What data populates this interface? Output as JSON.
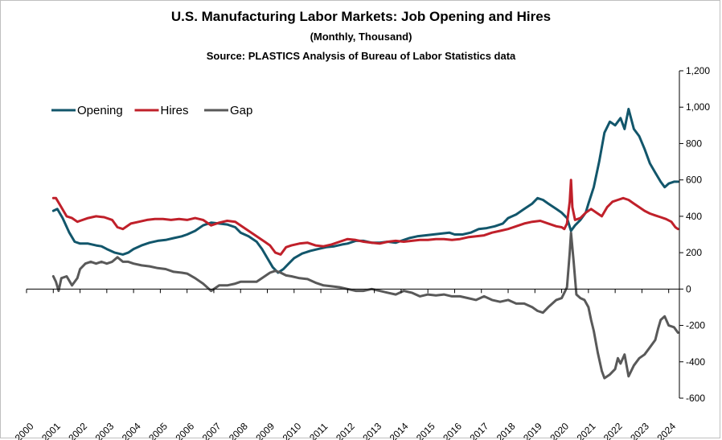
{
  "title": "U.S. Manufacturing Labor Markets: Job Opening and Hires",
  "subtitle": "(Monthly, Thousand)",
  "source": "Source: PLASTICS Analysis of Bureau of Labor Statistics data",
  "chart_data": {
    "type": "line",
    "ylim": [
      -600,
      1200
    ],
    "y_ticks": [
      1200,
      1000,
      800,
      600,
      400,
      200,
      0,
      -200,
      -400,
      -600
    ],
    "y_tick_labels": [
      "1,200",
      "1,000",
      "800",
      "600",
      "400",
      "200",
      "0",
      "-200",
      "-400",
      "-600"
    ],
    "x_range": [
      2000,
      2024.4
    ],
    "x_ticks": [
      "2000",
      "2001",
      "2002",
      "2003",
      "2004",
      "2005",
      "2006",
      "2007",
      "2008",
      "2009",
      "2010",
      "2011",
      "2012",
      "2013",
      "2014",
      "2015",
      "2016",
      "2017",
      "2018",
      "2019",
      "2020",
      "2021",
      "2022",
      "2023",
      "2024"
    ],
    "grid": false,
    "legend_position": "top-left",
    "series": [
      {
        "name": "Opening",
        "color": "#12566b",
        "points": [
          [
            2001.0,
            430
          ],
          [
            2001.15,
            440
          ],
          [
            2001.35,
            390
          ],
          [
            2001.6,
            310
          ],
          [
            2001.8,
            260
          ],
          [
            2002.0,
            250
          ],
          [
            2002.3,
            250
          ],
          [
            2002.6,
            240
          ],
          [
            2002.8,
            235
          ],
          [
            2003.0,
            220
          ],
          [
            2003.3,
            200
          ],
          [
            2003.6,
            190
          ],
          [
            2003.8,
            200
          ],
          [
            2004.0,
            220
          ],
          [
            2004.3,
            240
          ],
          [
            2004.6,
            255
          ],
          [
            2004.9,
            265
          ],
          [
            2005.2,
            270
          ],
          [
            2005.5,
            280
          ],
          [
            2005.8,
            290
          ],
          [
            2006.0,
            300
          ],
          [
            2006.3,
            320
          ],
          [
            2006.6,
            350
          ],
          [
            2006.9,
            365
          ],
          [
            2007.2,
            360
          ],
          [
            2007.5,
            355
          ],
          [
            2007.8,
            340
          ],
          [
            2008.0,
            310
          ],
          [
            2008.3,
            290
          ],
          [
            2008.6,
            260
          ],
          [
            2008.8,
            220
          ],
          [
            2009.0,
            170
          ],
          [
            2009.2,
            120
          ],
          [
            2009.4,
            90
          ],
          [
            2009.6,
            110
          ],
          [
            2009.8,
            140
          ],
          [
            2010.0,
            170
          ],
          [
            2010.3,
            195
          ],
          [
            2010.6,
            210
          ],
          [
            2010.9,
            220
          ],
          [
            2011.2,
            230
          ],
          [
            2011.5,
            235
          ],
          [
            2011.8,
            245
          ],
          [
            2012.0,
            250
          ],
          [
            2012.3,
            265
          ],
          [
            2012.6,
            265
          ],
          [
            2012.9,
            255
          ],
          [
            2013.2,
            255
          ],
          [
            2013.5,
            260
          ],
          [
            2013.8,
            255
          ],
          [
            2014.0,
            265
          ],
          [
            2014.3,
            280
          ],
          [
            2014.6,
            290
          ],
          [
            2014.9,
            295
          ],
          [
            2015.2,
            300
          ],
          [
            2015.5,
            305
          ],
          [
            2015.8,
            310
          ],
          [
            2016.0,
            300
          ],
          [
            2016.3,
            300
          ],
          [
            2016.6,
            310
          ],
          [
            2016.9,
            330
          ],
          [
            2017.2,
            335
          ],
          [
            2017.5,
            345
          ],
          [
            2017.8,
            360
          ],
          [
            2018.0,
            390
          ],
          [
            2018.3,
            410
          ],
          [
            2018.6,
            440
          ],
          [
            2018.9,
            470
          ],
          [
            2019.1,
            500
          ],
          [
            2019.3,
            490
          ],
          [
            2019.5,
            470
          ],
          [
            2019.8,
            440
          ],
          [
            2020.0,
            420
          ],
          [
            2020.2,
            390
          ],
          [
            2020.35,
            320
          ],
          [
            2020.5,
            350
          ],
          [
            2020.7,
            380
          ],
          [
            2020.9,
            420
          ],
          [
            2021.0,
            470
          ],
          [
            2021.2,
            560
          ],
          [
            2021.4,
            700
          ],
          [
            2021.6,
            860
          ],
          [
            2021.8,
            920
          ],
          [
            2022.0,
            900
          ],
          [
            2022.2,
            940
          ],
          [
            2022.35,
            880
          ],
          [
            2022.5,
            990
          ],
          [
            2022.7,
            880
          ],
          [
            2022.9,
            840
          ],
          [
            2023.1,
            770
          ],
          [
            2023.3,
            690
          ],
          [
            2023.5,
            640
          ],
          [
            2023.7,
            590
          ],
          [
            2023.85,
            560
          ],
          [
            2024.0,
            580
          ],
          [
            2024.2,
            590
          ],
          [
            2024.35,
            590
          ]
        ]
      },
      {
        "name": "Hires",
        "color": "#c0202a",
        "points": [
          [
            2001.0,
            500
          ],
          [
            2001.1,
            500
          ],
          [
            2001.3,
            450
          ],
          [
            2001.5,
            400
          ],
          [
            2001.7,
            390
          ],
          [
            2001.9,
            370
          ],
          [
            2002.0,
            375
          ],
          [
            2002.3,
            390
          ],
          [
            2002.6,
            400
          ],
          [
            2002.9,
            395
          ],
          [
            2003.2,
            380
          ],
          [
            2003.4,
            340
          ],
          [
            2003.6,
            330
          ],
          [
            2003.9,
            360
          ],
          [
            2004.2,
            370
          ],
          [
            2004.5,
            380
          ],
          [
            2004.8,
            385
          ],
          [
            2005.1,
            385
          ],
          [
            2005.4,
            380
          ],
          [
            2005.7,
            385
          ],
          [
            2006.0,
            380
          ],
          [
            2006.3,
            390
          ],
          [
            2006.6,
            380
          ],
          [
            2006.9,
            350
          ],
          [
            2007.2,
            365
          ],
          [
            2007.5,
            375
          ],
          [
            2007.8,
            370
          ],
          [
            2008.0,
            350
          ],
          [
            2008.3,
            320
          ],
          [
            2008.6,
            290
          ],
          [
            2008.9,
            260
          ],
          [
            2009.1,
            240
          ],
          [
            2009.3,
            200
          ],
          [
            2009.5,
            190
          ],
          [
            2009.7,
            230
          ],
          [
            2009.9,
            240
          ],
          [
            2010.2,
            250
          ],
          [
            2010.5,
            255
          ],
          [
            2010.8,
            240
          ],
          [
            2011.1,
            235
          ],
          [
            2011.4,
            245
          ],
          [
            2011.7,
            260
          ],
          [
            2012.0,
            275
          ],
          [
            2012.3,
            270
          ],
          [
            2012.6,
            260
          ],
          [
            2012.9,
            255
          ],
          [
            2013.2,
            250
          ],
          [
            2013.5,
            260
          ],
          [
            2013.8,
            265
          ],
          [
            2014.1,
            260
          ],
          [
            2014.4,
            265
          ],
          [
            2014.7,
            270
          ],
          [
            2015.0,
            270
          ],
          [
            2015.3,
            275
          ],
          [
            2015.6,
            275
          ],
          [
            2015.9,
            270
          ],
          [
            2016.2,
            275
          ],
          [
            2016.5,
            285
          ],
          [
            2016.8,
            290
          ],
          [
            2017.1,
            295
          ],
          [
            2017.4,
            310
          ],
          [
            2017.7,
            320
          ],
          [
            2018.0,
            330
          ],
          [
            2018.3,
            345
          ],
          [
            2018.6,
            360
          ],
          [
            2018.9,
            370
          ],
          [
            2019.2,
            375
          ],
          [
            2019.5,
            360
          ],
          [
            2019.8,
            345
          ],
          [
            2020.0,
            340
          ],
          [
            2020.1,
            330
          ],
          [
            2020.2,
            360
          ],
          [
            2020.3,
            480
          ],
          [
            2020.35,
            600
          ],
          [
            2020.4,
            450
          ],
          [
            2020.5,
            380
          ],
          [
            2020.7,
            390
          ],
          [
            2020.9,
            420
          ],
          [
            2021.1,
            440
          ],
          [
            2021.3,
            420
          ],
          [
            2021.5,
            400
          ],
          [
            2021.7,
            450
          ],
          [
            2021.9,
            480
          ],
          [
            2022.1,
            490
          ],
          [
            2022.3,
            500
          ],
          [
            2022.5,
            490
          ],
          [
            2022.7,
            470
          ],
          [
            2022.9,
            450
          ],
          [
            2023.1,
            430
          ],
          [
            2023.3,
            415
          ],
          [
            2023.5,
            405
          ],
          [
            2023.7,
            395
          ],
          [
            2023.9,
            385
          ],
          [
            2024.1,
            370
          ],
          [
            2024.25,
            340
          ],
          [
            2024.35,
            330
          ]
        ]
      },
      {
        "name": "Gap",
        "color": "#595959",
        "points": [
          [
            2001.0,
            70
          ],
          [
            2001.1,
            40
          ],
          [
            2001.2,
            -10
          ],
          [
            2001.3,
            60
          ],
          [
            2001.5,
            70
          ],
          [
            2001.7,
            20
          ],
          [
            2001.9,
            60
          ],
          [
            2002.0,
            110
          ],
          [
            2002.2,
            140
          ],
          [
            2002.4,
            150
          ],
          [
            2002.6,
            140
          ],
          [
            2002.8,
            150
          ],
          [
            2003.0,
            140
          ],
          [
            2003.2,
            150
          ],
          [
            2003.4,
            175
          ],
          [
            2003.6,
            150
          ],
          [
            2003.8,
            150
          ],
          [
            2004.0,
            140
          ],
          [
            2004.3,
            130
          ],
          [
            2004.6,
            125
          ],
          [
            2004.9,
            115
          ],
          [
            2005.2,
            110
          ],
          [
            2005.5,
            95
          ],
          [
            2005.8,
            90
          ],
          [
            2006.0,
            85
          ],
          [
            2006.3,
            60
          ],
          [
            2006.6,
            30
          ],
          [
            2006.9,
            -10
          ],
          [
            2007.2,
            20
          ],
          [
            2007.5,
            20
          ],
          [
            2007.8,
            30
          ],
          [
            2008.0,
            40
          ],
          [
            2008.3,
            40
          ],
          [
            2008.6,
            40
          ],
          [
            2008.9,
            70
          ],
          [
            2009.1,
            90
          ],
          [
            2009.3,
            100
          ],
          [
            2009.5,
            90
          ],
          [
            2009.7,
            75
          ],
          [
            2009.9,
            70
          ],
          [
            2010.2,
            60
          ],
          [
            2010.5,
            55
          ],
          [
            2010.8,
            35
          ],
          [
            2011.1,
            20
          ],
          [
            2011.4,
            15
          ],
          [
            2011.7,
            10
          ],
          [
            2012.0,
            0
          ],
          [
            2012.3,
            -10
          ],
          [
            2012.6,
            -10
          ],
          [
            2012.9,
            0
          ],
          [
            2013.2,
            -10
          ],
          [
            2013.5,
            -20
          ],
          [
            2013.8,
            -30
          ],
          [
            2014.1,
            -10
          ],
          [
            2014.4,
            -20
          ],
          [
            2014.7,
            -40
          ],
          [
            2015.0,
            -30
          ],
          [
            2015.3,
            -35
          ],
          [
            2015.6,
            -30
          ],
          [
            2015.9,
            -40
          ],
          [
            2016.2,
            -40
          ],
          [
            2016.5,
            -50
          ],
          [
            2016.8,
            -60
          ],
          [
            2017.1,
            -40
          ],
          [
            2017.4,
            -60
          ],
          [
            2017.7,
            -70
          ],
          [
            2018.0,
            -60
          ],
          [
            2018.3,
            -80
          ],
          [
            2018.6,
            -80
          ],
          [
            2018.9,
            -100
          ],
          [
            2019.1,
            -120
          ],
          [
            2019.3,
            -130
          ],
          [
            2019.5,
            -100
          ],
          [
            2019.8,
            -60
          ],
          [
            2020.0,
            -50
          ],
          [
            2020.1,
            -20
          ],
          [
            2020.2,
            10
          ],
          [
            2020.3,
            200
          ],
          [
            2020.35,
            310
          ],
          [
            2020.45,
            150
          ],
          [
            2020.55,
            -30
          ],
          [
            2020.7,
            -50
          ],
          [
            2020.85,
            -60
          ],
          [
            2021.0,
            -100
          ],
          [
            2021.1,
            -170
          ],
          [
            2021.2,
            -230
          ],
          [
            2021.35,
            -350
          ],
          [
            2021.5,
            -450
          ],
          [
            2021.6,
            -490
          ],
          [
            2021.8,
            -470
          ],
          [
            2022.0,
            -440
          ],
          [
            2022.1,
            -380
          ],
          [
            2022.2,
            -410
          ],
          [
            2022.35,
            -360
          ],
          [
            2022.5,
            -480
          ],
          [
            2022.7,
            -420
          ],
          [
            2022.9,
            -380
          ],
          [
            2023.1,
            -360
          ],
          [
            2023.3,
            -320
          ],
          [
            2023.5,
            -280
          ],
          [
            2023.6,
            -220
          ],
          [
            2023.7,
            -170
          ],
          [
            2023.85,
            -150
          ],
          [
            2024.0,
            -200
          ],
          [
            2024.2,
            -210
          ],
          [
            2024.35,
            -240
          ]
        ]
      }
    ]
  }
}
